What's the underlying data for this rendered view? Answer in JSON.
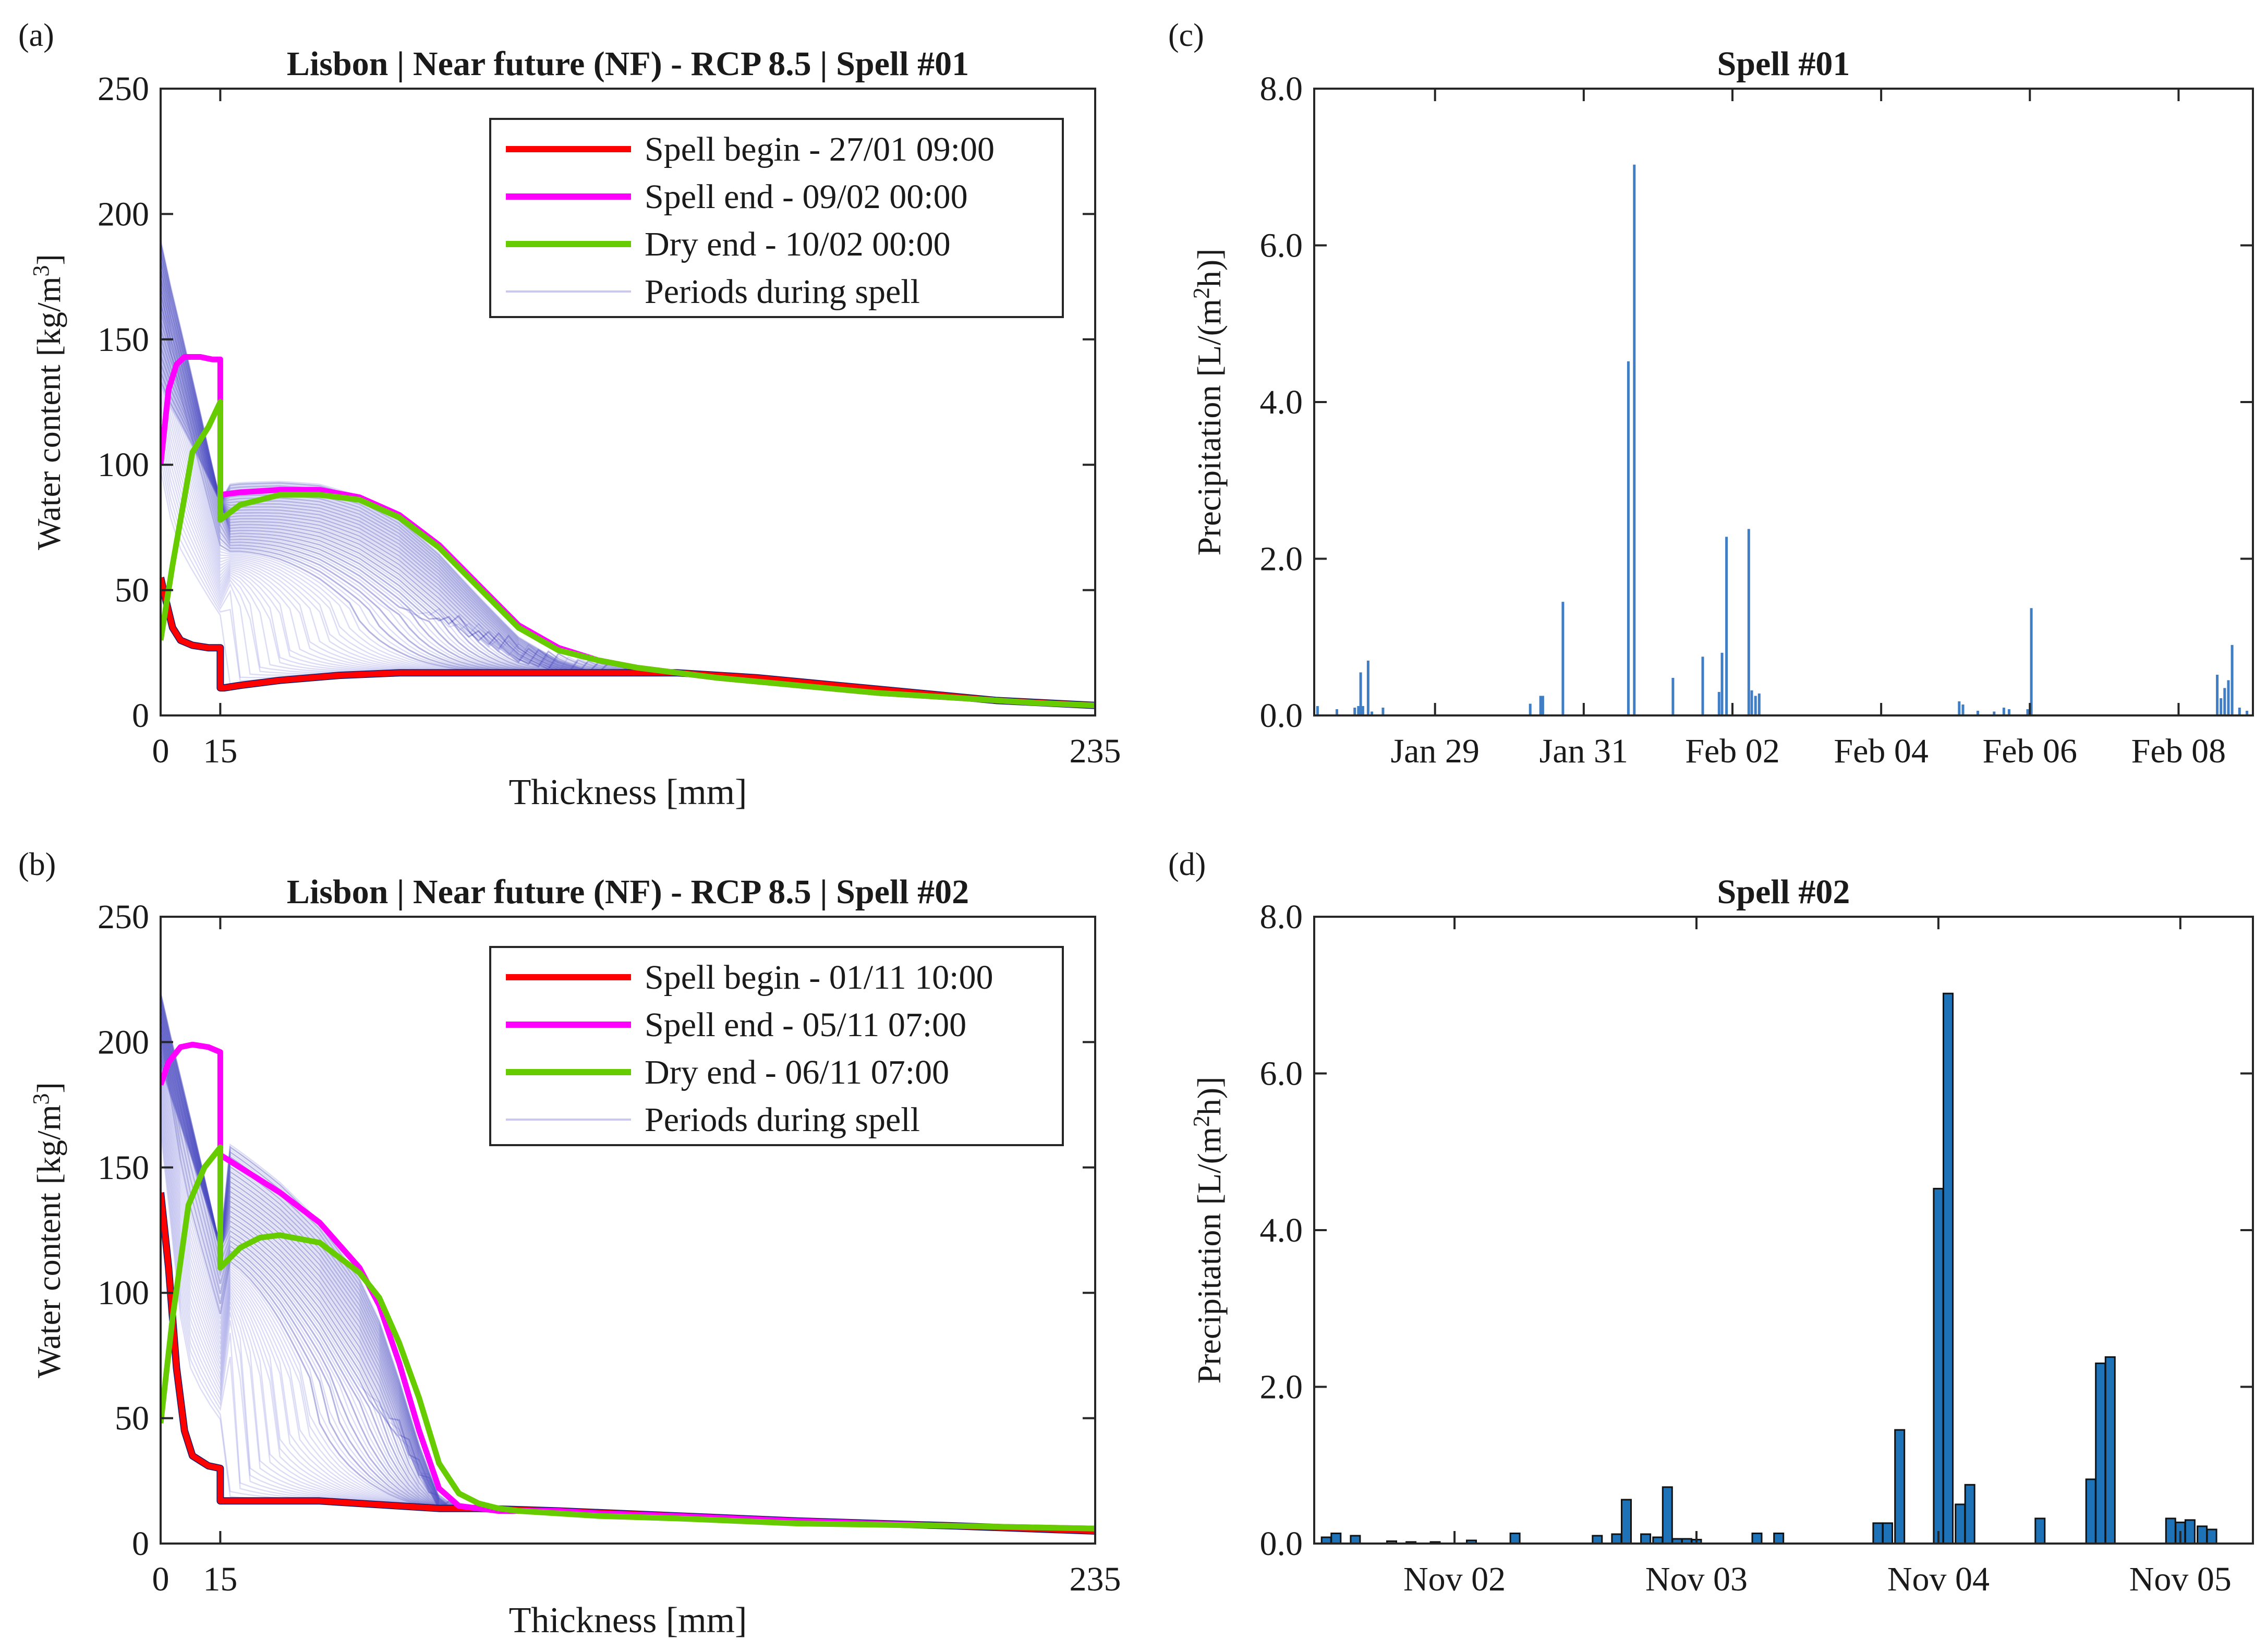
{
  "panel_letters": [
    "(a)",
    "(b)",
    "(c)",
    "(d)"
  ],
  "chart_data": [
    {
      "id": "a",
      "type": "line",
      "title": "Lisbon | Near future (NF) - RCP 8.5 | Spell #01",
      "xlabel": "Thickness [mm]",
      "ylabel": "Water content [kg/m",
      "ylabel_sup": "3",
      "ylabel_tail": "]",
      "xlim": [
        0,
        235
      ],
      "ylim": [
        0,
        250
      ],
      "xticks": [
        0,
        15,
        235
      ],
      "yticks": [
        0,
        50,
        100,
        150,
        200,
        250
      ],
      "grid": false,
      "legend_position": "top-right",
      "legend": [
        {
          "label": "Spell begin - 27/01 09:00",
          "color": "#ff0000"
        },
        {
          "label": "Spell end - 09/02 00:00",
          "color": "#ff00ff"
        },
        {
          "label": "Dry end - 10/02 00:00",
          "color": "#66cc00"
        },
        {
          "label": "Periods during spell",
          "color": "#c8c8f0"
        }
      ],
      "series": [
        {
          "role": "begin",
          "color": "#ff0000",
          "x": [
            0,
            1,
            3,
            5,
            8,
            12,
            15,
            15,
            16,
            20,
            30,
            45,
            60,
            80,
            100,
            120,
            130,
            150,
            170,
            190,
            210,
            235
          ],
          "y": [
            55,
            48,
            35,
            30,
            28,
            27,
            27,
            11,
            11,
            12,
            14,
            16,
            17,
            17,
            17,
            17,
            17,
            15,
            12,
            9,
            6,
            4
          ]
        },
        {
          "role": "end",
          "color": "#ff00ff",
          "x": [
            0,
            2,
            4,
            6,
            10,
            13,
            15,
            15,
            20,
            30,
            40,
            50,
            60,
            70,
            80,
            90,
            100,
            110,
            120,
            130,
            140,
            160,
            180,
            200,
            220,
            235
          ],
          "y": [
            100,
            130,
            140,
            143,
            143,
            142,
            142,
            88,
            89,
            90,
            90,
            87,
            80,
            68,
            52,
            36,
            27,
            22,
            19,
            17,
            15,
            12,
            9,
            7,
            5,
            4
          ]
        },
        {
          "role": "dry",
          "color": "#66cc00",
          "x": [
            0,
            3,
            8,
            12,
            15,
            15,
            20,
            30,
            40,
            50,
            60,
            70,
            80,
            90,
            100,
            110,
            120,
            130,
            140,
            160,
            180,
            200,
            220,
            235
          ],
          "y": [
            30,
            60,
            105,
            115,
            125,
            78,
            84,
            88,
            88,
            86,
            79,
            67,
            51,
            35,
            26,
            22,
            19,
            17,
            15,
            12,
            9,
            7,
            5,
            4
          ]
        }
      ]
    },
    {
      "id": "b",
      "type": "line",
      "title": "Lisbon | Near future (NF) - RCP 8.5 | Spell #02",
      "xlabel": "Thickness [mm]",
      "ylabel": "Water content [kg/m",
      "ylabel_sup": "3",
      "ylabel_tail": "]",
      "xlim": [
        0,
        235
      ],
      "ylim": [
        0,
        250
      ],
      "xticks": [
        0,
        15,
        235
      ],
      "yticks": [
        0,
        50,
        100,
        150,
        200,
        250
      ],
      "grid": false,
      "legend_position": "top-right",
      "legend": [
        {
          "label": "Spell begin - 01/11 10:00",
          "color": "#ff0000"
        },
        {
          "label": "Spell end - 05/11 07:00",
          "color": "#ff00ff"
        },
        {
          "label": "Dry end - 06/11 07:00",
          "color": "#66cc00"
        },
        {
          "label": "Periods during spell",
          "color": "#c8c8f0"
        }
      ],
      "series": [
        {
          "role": "begin",
          "color": "#ff0000",
          "x": [
            0,
            2,
            4,
            6,
            8,
            12,
            15,
            15,
            20,
            30,
            40,
            50,
            60,
            70,
            80,
            100,
            130,
            160,
            200,
            235
          ],
          "y": [
            140,
            110,
            70,
            45,
            35,
            31,
            30,
            17,
            17,
            17,
            17,
            16,
            15,
            14,
            14,
            13,
            11,
            9,
            7,
            5
          ]
        },
        {
          "role": "end",
          "color": "#ff00ff",
          "x": [
            0,
            2,
            5,
            8,
            12,
            15,
            15,
            20,
            30,
            40,
            50,
            55,
            60,
            65,
            70,
            75,
            80,
            85,
            90,
            100,
            110,
            130,
            160,
            200,
            235
          ],
          "y": [
            183,
            192,
            198,
            199,
            198,
            196,
            155,
            150,
            140,
            128,
            110,
            95,
            72,
            45,
            22,
            15,
            14,
            13,
            13,
            13,
            12,
            11,
            9,
            7,
            6
          ]
        },
        {
          "role": "dry",
          "color": "#66cc00",
          "x": [
            0,
            3,
            7,
            11,
            15,
            15,
            20,
            25,
            30,
            40,
            50,
            55,
            60,
            65,
            70,
            75,
            80,
            85,
            90,
            100,
            110,
            130,
            160,
            200,
            235
          ],
          "y": [
            48,
            90,
            135,
            150,
            158,
            110,
            118,
            122,
            123,
            120,
            108,
            98,
            80,
            58,
            32,
            20,
            16,
            14,
            13,
            12,
            11,
            10,
            8,
            7,
            6
          ]
        }
      ]
    },
    {
      "id": "c",
      "type": "bar",
      "title": "Spell #01",
      "xlabel": "",
      "ylabel": "Precipitation [L/(m",
      "ylabel_sup": "2",
      "ylabel_tail": "h)]",
      "ylim": [
        0,
        8
      ],
      "yticks": [
        "0.0",
        "2.0",
        "4.0",
        "6.0",
        "8.0"
      ],
      "xlim_days": [
        27.375,
        40.0
      ],
      "xticks": [
        {
          "day": 29,
          "label": "Jan 29"
        },
        {
          "day": 31,
          "label": "Jan 31"
        },
        {
          "day": 33,
          "label": "Feb 02"
        },
        {
          "day": 35,
          "label": "Feb 04"
        },
        {
          "day": 37,
          "label": "Feb 06"
        },
        {
          "day": 39,
          "label": "Feb 08"
        }
      ],
      "bar_color": "#3f7ec4",
      "grid": false,
      "bars": [
        {
          "day": 27.42,
          "value": 0.12
        },
        {
          "day": 27.68,
          "value": 0.08
        },
        {
          "day": 27.92,
          "value": 0.1
        },
        {
          "day": 27.97,
          "value": 0.12
        },
        {
          "day": 28.0,
          "value": 0.55
        },
        {
          "day": 28.03,
          "value": 0.12
        },
        {
          "day": 28.1,
          "value": 0.7
        },
        {
          "day": 28.15,
          "value": 0.05
        },
        {
          "day": 28.3,
          "value": 0.1
        },
        {
          "day": 30.28,
          "value": 0.15
        },
        {
          "day": 30.42,
          "value": 0.25
        },
        {
          "day": 30.45,
          "value": 0.25
        },
        {
          "day": 30.72,
          "value": 1.45
        },
        {
          "day": 31.6,
          "value": 4.52
        },
        {
          "day": 31.68,
          "value": 7.03
        },
        {
          "day": 32.2,
          "value": 0.48
        },
        {
          "day": 32.6,
          "value": 0.75
        },
        {
          "day": 32.82,
          "value": 0.3
        },
        {
          "day": 32.86,
          "value": 0.8
        },
        {
          "day": 32.92,
          "value": 2.28
        },
        {
          "day": 33.22,
          "value": 2.38
        },
        {
          "day": 33.26,
          "value": 0.32
        },
        {
          "day": 33.31,
          "value": 0.25
        },
        {
          "day": 33.36,
          "value": 0.28
        },
        {
          "day": 36.05,
          "value": 0.18
        },
        {
          "day": 36.1,
          "value": 0.14
        },
        {
          "day": 36.3,
          "value": 0.06
        },
        {
          "day": 36.52,
          "value": 0.05
        },
        {
          "day": 36.65,
          "value": 0.1
        },
        {
          "day": 36.72,
          "value": 0.08
        },
        {
          "day": 36.97,
          "value": 0.08
        },
        {
          "day": 37.02,
          "value": 1.37
        },
        {
          "day": 39.52,
          "value": 0.52
        },
        {
          "day": 39.57,
          "value": 0.22
        },
        {
          "day": 39.62,
          "value": 0.35
        },
        {
          "day": 39.67,
          "value": 0.45
        },
        {
          "day": 39.72,
          "value": 0.9
        },
        {
          "day": 39.82,
          "value": 0.1
        },
        {
          "day": 39.92,
          "value": 0.06
        }
      ]
    },
    {
      "id": "d",
      "type": "bar",
      "title": "Spell #02",
      "xlabel": "",
      "ylabel": "Precipitation [L/(m",
      "ylabel_sup": "2",
      "ylabel_tail": "h)]",
      "ylim": [
        0,
        8
      ],
      "yticks": [
        "0.0",
        "2.0",
        "4.0",
        "6.0",
        "8.0"
      ],
      "xlim_days": [
        1.42,
        5.3
      ],
      "xticks": [
        {
          "day": 2,
          "label": "Nov 02"
        },
        {
          "day": 3,
          "label": "Nov 03"
        },
        {
          "day": 4,
          "label": "Nov 04"
        },
        {
          "day": 5,
          "label": "Nov 05"
        }
      ],
      "bar_color": "#1e73b8",
      "grid": false,
      "bars": [
        {
          "day": 1.47,
          "value": 0.08
        },
        {
          "day": 1.51,
          "value": 0.13
        },
        {
          "day": 1.59,
          "value": 0.1
        },
        {
          "day": 1.74,
          "value": 0.03
        },
        {
          "day": 1.82,
          "value": 0.02
        },
        {
          "day": 1.92,
          "value": 0.02
        },
        {
          "day": 2.07,
          "value": 0.04
        },
        {
          "day": 2.25,
          "value": 0.13
        },
        {
          "day": 2.59,
          "value": 0.1
        },
        {
          "day": 2.67,
          "value": 0.12
        },
        {
          "day": 2.71,
          "value": 0.56
        },
        {
          "day": 2.79,
          "value": 0.12
        },
        {
          "day": 2.84,
          "value": 0.08
        },
        {
          "day": 2.88,
          "value": 0.72
        },
        {
          "day": 2.92,
          "value": 0.06
        },
        {
          "day": 2.96,
          "value": 0.06
        },
        {
          "day": 3.0,
          "value": 0.05
        },
        {
          "day": 3.25,
          "value": 0.13
        },
        {
          "day": 3.34,
          "value": 0.13
        },
        {
          "day": 3.75,
          "value": 0.26
        },
        {
          "day": 3.79,
          "value": 0.26
        },
        {
          "day": 3.84,
          "value": 1.45
        },
        {
          "day": 4.0,
          "value": 4.53
        },
        {
          "day": 4.04,
          "value": 7.02
        },
        {
          "day": 4.09,
          "value": 0.5
        },
        {
          "day": 4.13,
          "value": 0.75
        },
        {
          "day": 4.42,
          "value": 0.32
        },
        {
          "day": 4.63,
          "value": 0.82
        },
        {
          "day": 4.67,
          "value": 2.3
        },
        {
          "day": 4.71,
          "value": 2.38
        },
        {
          "day": 4.96,
          "value": 0.32
        },
        {
          "day": 5.0,
          "value": 0.27
        },
        {
          "day": 5.04,
          "value": 0.3
        },
        {
          "day": 5.09,
          "value": 0.22
        },
        {
          "day": 5.13,
          "value": 0.18
        }
      ]
    }
  ]
}
